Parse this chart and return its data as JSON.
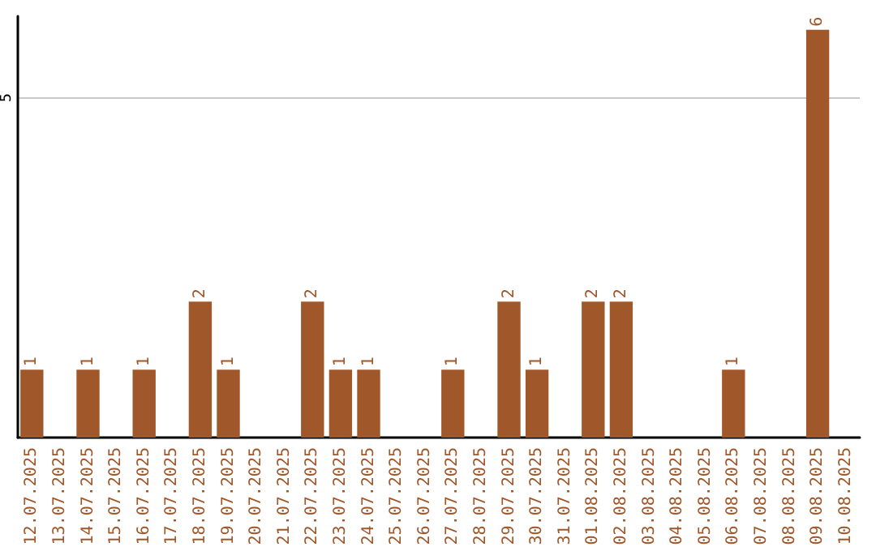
{
  "chart_data": {
    "type": "bar",
    "categories": [
      "12.07.2025",
      "13.07.2025",
      "14.07.2025",
      "15.07.2025",
      "16.07.2025",
      "17.07.2025",
      "18.07.2025",
      "19.07.2025",
      "20.07.2025",
      "21.07.2025",
      "22.07.2025",
      "23.07.2025",
      "24.07.2025",
      "25.07.2025",
      "26.07.2025",
      "27.07.2025",
      "28.07.2025",
      "29.07.2025",
      "30.07.2025",
      "31.07.2025",
      "01.08.2025",
      "02.08.2025",
      "03.08.2025",
      "04.08.2025",
      "05.08.2025",
      "06.08.2025",
      "07.08.2025",
      "08.08.2025",
      "09.08.2025",
      "10.08.2025"
    ],
    "values": [
      1,
      null,
      1,
      null,
      1,
      null,
      2,
      1,
      null,
      null,
      2,
      1,
      1,
      null,
      null,
      1,
      null,
      2,
      1,
      null,
      2,
      2,
      null,
      null,
      null,
      1,
      null,
      null,
      6,
      null
    ],
    "color": "#a0572a",
    "ylim": [
      0,
      6.2
    ],
    "yticks": [
      5
    ],
    "grid": "y",
    "data_labels": true
  }
}
